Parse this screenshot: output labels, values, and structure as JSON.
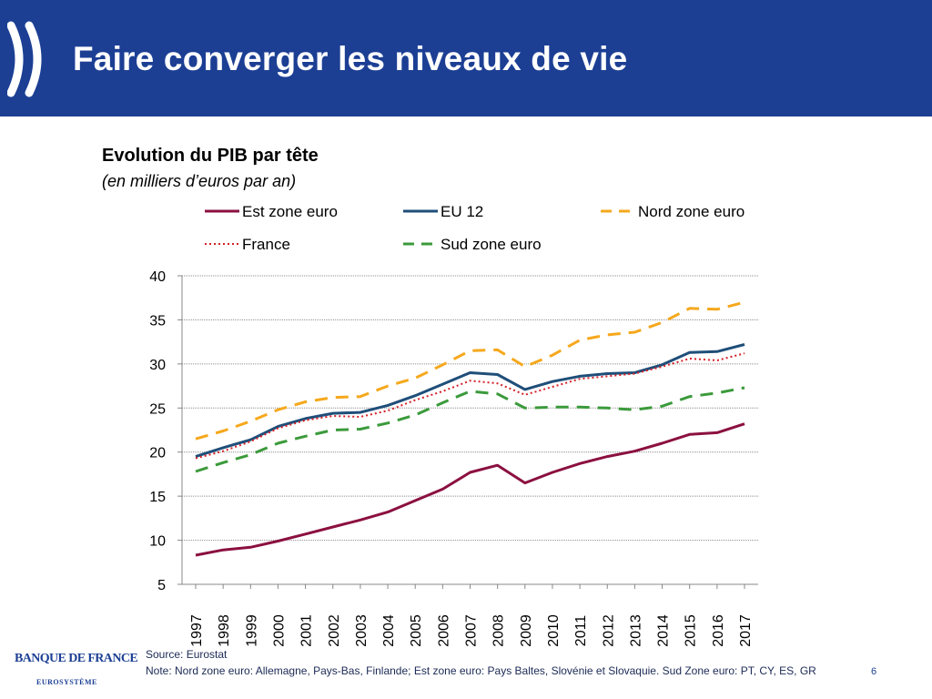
{
  "header": {
    "title": "Faire converger les niveaux de vie"
  },
  "chart_data": {
    "type": "line",
    "title": "Evolution du PIB par tête",
    "subtitle": "(en milliers d’euros par an)",
    "xlabel": "",
    "ylabel": "",
    "ylim": [
      5,
      40
    ],
    "yticks": [
      5,
      10,
      15,
      20,
      25,
      30,
      35,
      40
    ],
    "grid": true,
    "legend_position": "top",
    "x": [
      "1997",
      "1998",
      "1999",
      "2000",
      "2001",
      "2002",
      "2003",
      "2004",
      "2005",
      "2006",
      "2007",
      "2008",
      "2009",
      "2010",
      "2011",
      "2012",
      "2013",
      "2014",
      "2015",
      "2016",
      "2017"
    ],
    "series": [
      {
        "name": "Est zone euro",
        "color": "#8b1040",
        "style": "solid",
        "values": [
          8.3,
          8.9,
          9.2,
          9.9,
          10.7,
          11.5,
          12.3,
          13.2,
          14.5,
          15.8,
          17.7,
          18.5,
          16.5,
          17.7,
          18.7,
          19.5,
          20.1,
          21.0,
          22.0,
          22.2,
          23.2
        ]
      },
      {
        "name": "EU 12",
        "color": "#1f4e79",
        "style": "solid",
        "values": [
          19.5,
          20.5,
          21.4,
          22.9,
          23.8,
          24.4,
          24.5,
          25.3,
          26.4,
          27.7,
          29.0,
          28.8,
          27.1,
          28.0,
          28.6,
          28.9,
          29.0,
          29.9,
          31.3,
          31.4,
          32.2
        ]
      },
      {
        "name": "Nord zone euro",
        "color": "#f5a81c",
        "style": "dashed",
        "values": [
          21.5,
          22.4,
          23.5,
          24.8,
          25.7,
          26.2,
          26.3,
          27.5,
          28.4,
          29.9,
          31.5,
          31.6,
          29.7,
          31.0,
          32.7,
          33.3,
          33.6,
          34.7,
          36.3,
          36.2,
          37.0
        ]
      },
      {
        "name": "France",
        "color": "#d42027",
        "style": "dotted",
        "values": [
          19.3,
          20.1,
          21.2,
          22.7,
          23.6,
          24.1,
          24.0,
          24.7,
          25.9,
          26.9,
          28.1,
          27.8,
          26.5,
          27.4,
          28.3,
          28.6,
          28.9,
          29.7,
          30.6,
          30.4,
          31.2
        ]
      },
      {
        "name": "Sud zone euro",
        "color": "#3b9a3b",
        "style": "dashed",
        "values": [
          17.8,
          18.8,
          19.7,
          21.0,
          21.8,
          22.5,
          22.6,
          23.3,
          24.2,
          25.6,
          26.9,
          26.6,
          25.0,
          25.1,
          25.1,
          25.0,
          24.8,
          25.2,
          26.3,
          26.7,
          27.3
        ]
      }
    ]
  },
  "footer": {
    "logo_text": "BANQUE DE FRANCE",
    "logo_subtext": "EUROSYSTÈME",
    "source": "Source: Eurostat",
    "note": "Note: Nord zone euro: Allemagne, Pays-Bas, Finlande; Est zone euro: Pays Baltes, Slovénie et Slovaquie. Sud Zone euro: PT, CY, ES, GR",
    "page_number": "6"
  }
}
